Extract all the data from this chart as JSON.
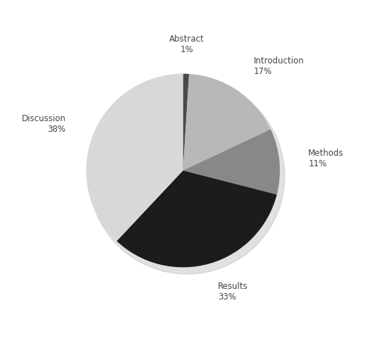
{
  "labels": [
    "Abstract",
    "Introduction",
    "Methods",
    "Results",
    "Discussion"
  ],
  "values": [
    1,
    17,
    11,
    33,
    38
  ],
  "colors": [
    "#4a4a4a",
    "#b8b8b8",
    "#888888",
    "#1c1c1c",
    "#d8d8d8"
  ],
  "label_texts": [
    "Abstract\n1%",
    "Introduction\n17%",
    "Methods\n11%",
    "Results\n33%",
    "Discussion\n38%"
  ],
  "startangle": 90,
  "figsize": [
    5.19,
    4.84
  ],
  "dpi": 100,
  "background_color": "#ffffff",
  "text_color": "#444444",
  "fontsize": 8.5
}
